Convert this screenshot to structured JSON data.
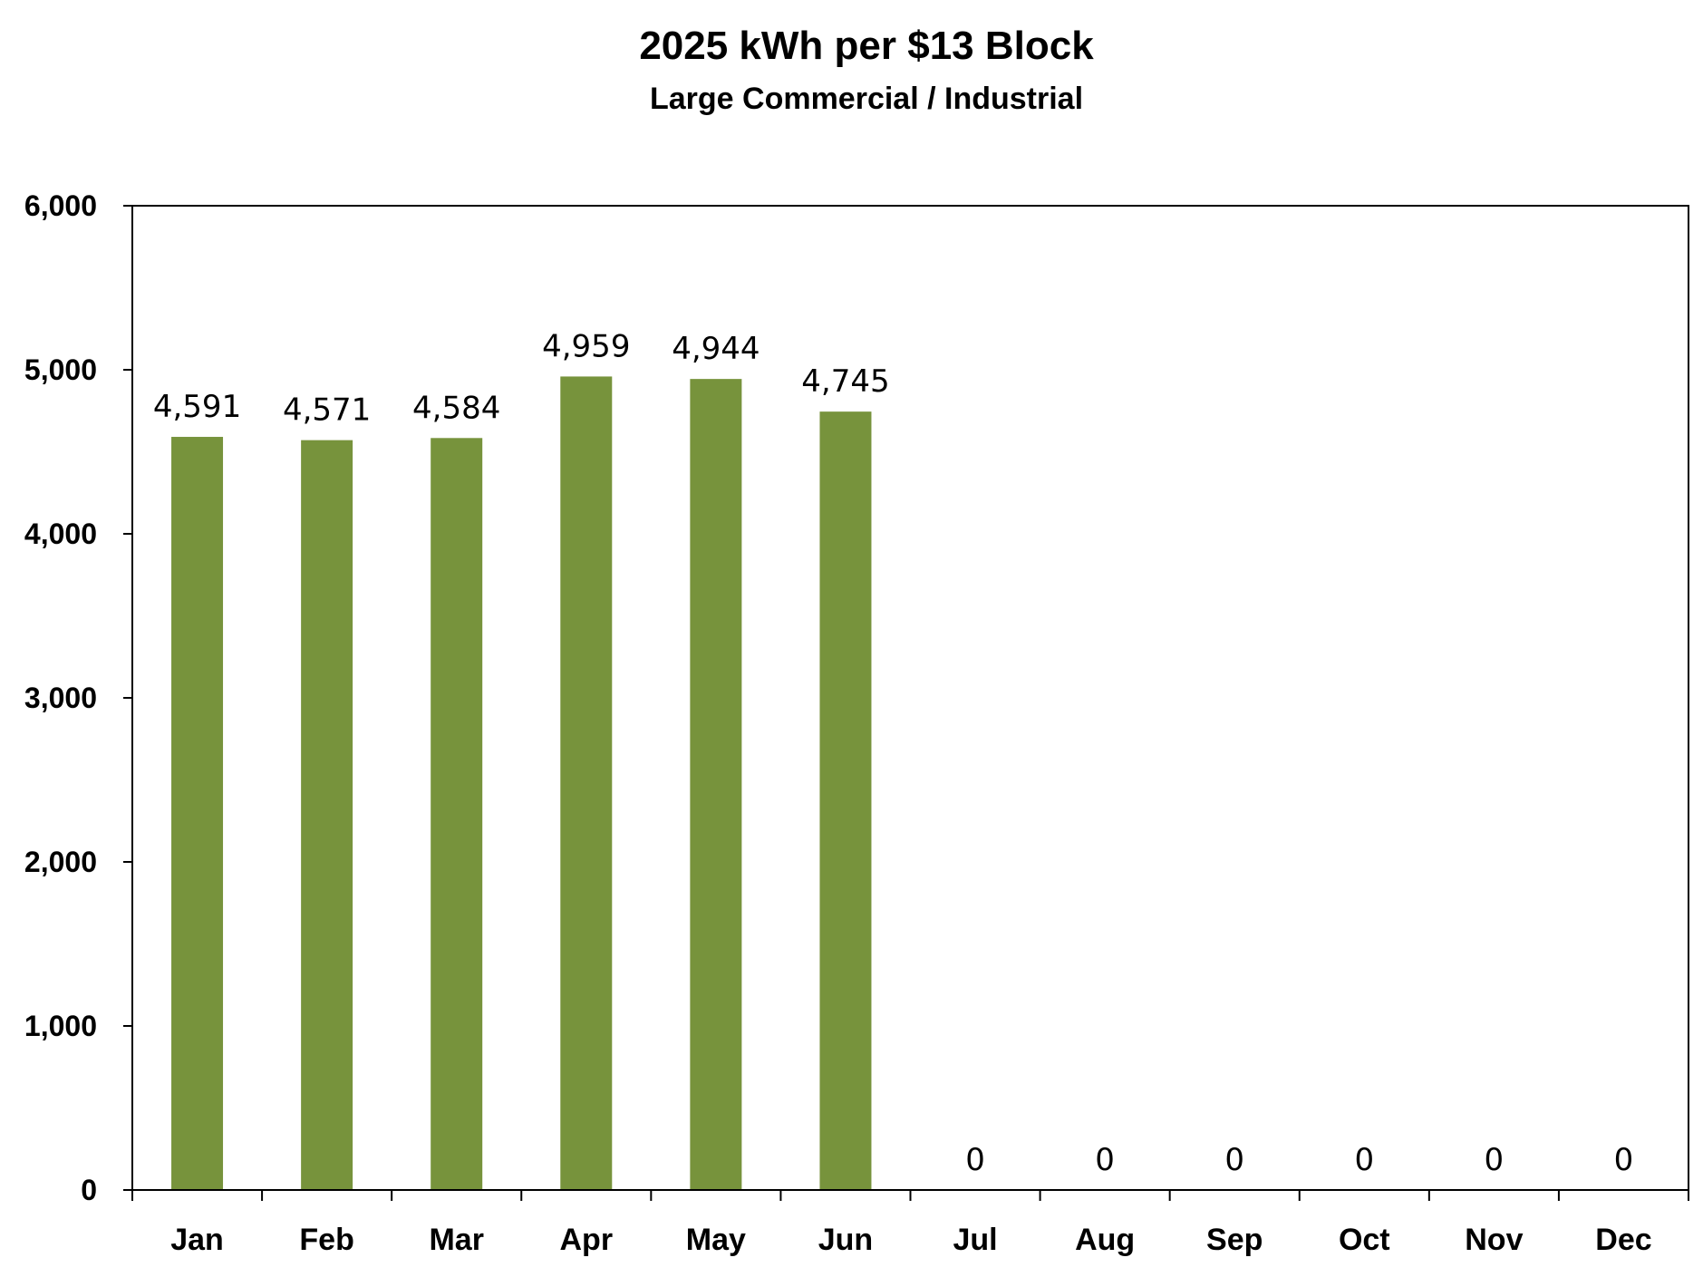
{
  "chart_data": {
    "type": "bar",
    "title": "2025 kWh per $13 Block",
    "subtitle": "Large Commercial / Industrial",
    "categories": [
      "Jan",
      "Feb",
      "Mar",
      "Apr",
      "May",
      "Jun",
      "Jul",
      "Aug",
      "Sep",
      "Oct",
      "Nov",
      "Dec"
    ],
    "values": [
      4591,
      4571,
      4584,
      4959,
      4944,
      4745,
      0,
      0,
      0,
      0,
      0,
      0
    ],
    "data_labels": [
      "4,591",
      "4,571",
      "4,584",
      "4,959",
      "4,944",
      "4,745",
      "0",
      "0",
      "0",
      "0",
      "0",
      "0"
    ],
    "ylim": [
      0,
      6000
    ],
    "yticks": [
      0,
      1000,
      2000,
      3000,
      4000,
      5000,
      6000
    ],
    "ytick_labels": [
      "0",
      "1,000",
      "2,000",
      "3,000",
      "4,000",
      "5,000",
      "6,000"
    ],
    "grid": false,
    "legend": "none",
    "bar_color": "#77933c"
  }
}
